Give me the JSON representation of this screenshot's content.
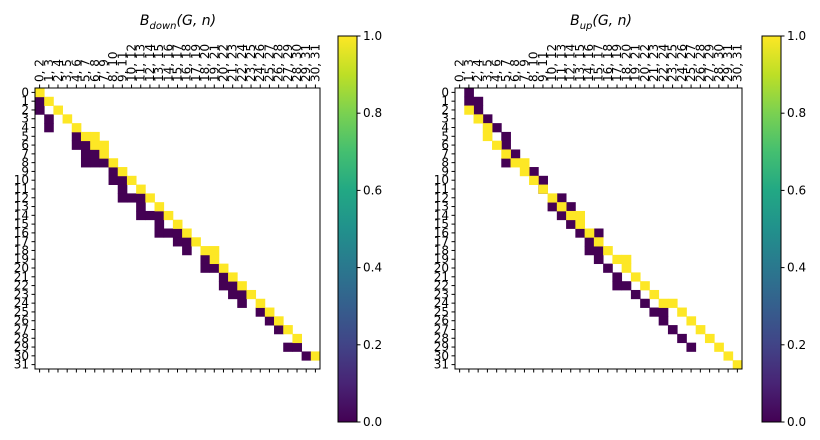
{
  "chart_data": [
    {
      "type": "heatmap",
      "title_main": "B",
      "title_sub": "down",
      "title_args": "(G, n)",
      "row_labels": [
        "0",
        "1",
        "2",
        "3",
        "4",
        "5",
        "6",
        "7",
        "8",
        "9",
        "10",
        "11",
        "12",
        "13",
        "14",
        "15",
        "16",
        "17",
        "18",
        "19",
        "20",
        "21",
        "22",
        "23",
        "24",
        "25",
        "26",
        "27",
        "28",
        "29",
        "30",
        "31"
      ],
      "col_labels": [
        "0, 2",
        "1, 3",
        "2, 4",
        "3, 5",
        "4, 6",
        "5, 7",
        "6, 8",
        "7, 9",
        "8, 10",
        "9, 11",
        "10, 12",
        "11, 13",
        "12, 14",
        "13, 15",
        "14, 16",
        "15, 17",
        "16, 18",
        "17, 19",
        "18, 20",
        "19, 21",
        "20, 22",
        "21, 23",
        "22, 24",
        "23, 25",
        "24, 26",
        "25, 27",
        "26, 28",
        "27, 29",
        "28, 30",
        "29, 31",
        "30, 31"
      ],
      "value_range": [
        0,
        1
      ],
      "colorbar_ticks": [
        "0.0",
        "0.2",
        "0.4",
        "0.6",
        "0.8",
        "1.0"
      ],
      "colormap": "viridis",
      "ones": [
        [
          0,
          0
        ],
        [
          1,
          1
        ],
        [
          2,
          2
        ],
        [
          3,
          3
        ],
        [
          4,
          4
        ],
        [
          5,
          5
        ],
        [
          5,
          6
        ],
        [
          6,
          6
        ],
        [
          6,
          7
        ],
        [
          7,
          7
        ],
        [
          8,
          8
        ],
        [
          9,
          9
        ],
        [
          10,
          10
        ],
        [
          11,
          11
        ],
        [
          12,
          12
        ],
        [
          13,
          13
        ],
        [
          14,
          14
        ],
        [
          15,
          15
        ],
        [
          16,
          16
        ],
        [
          17,
          17
        ],
        [
          18,
          18
        ],
        [
          18,
          19
        ],
        [
          19,
          19
        ],
        [
          20,
          20
        ],
        [
          21,
          21
        ],
        [
          22,
          22
        ],
        [
          23,
          23
        ],
        [
          24,
          24
        ],
        [
          25,
          25
        ],
        [
          26,
          26
        ],
        [
          27,
          27
        ],
        [
          28,
          28
        ],
        [
          30,
          30
        ]
      ],
      "zeros": [
        [
          1,
          0
        ],
        [
          2,
          0
        ],
        [
          3,
          1
        ],
        [
          4,
          1
        ],
        [
          5,
          4
        ],
        [
          6,
          4
        ],
        [
          6,
          5
        ],
        [
          7,
          5
        ],
        [
          7,
          6
        ],
        [
          8,
          5
        ],
        [
          8,
          6
        ],
        [
          8,
          7
        ],
        [
          9,
          8
        ],
        [
          10,
          8
        ],
        [
          10,
          9
        ],
        [
          11,
          9
        ],
        [
          12,
          9
        ],
        [
          12,
          10
        ],
        [
          12,
          11
        ],
        [
          13,
          11
        ],
        [
          14,
          11
        ],
        [
          14,
          12
        ],
        [
          14,
          13
        ],
        [
          15,
          13
        ],
        [
          16,
          13
        ],
        [
          16,
          14
        ],
        [
          16,
          15
        ],
        [
          17,
          15
        ],
        [
          17,
          16
        ],
        [
          18,
          16
        ],
        [
          19,
          18
        ],
        [
          20,
          18
        ],
        [
          20,
          19
        ],
        [
          21,
          20
        ],
        [
          22,
          20
        ],
        [
          22,
          21
        ],
        [
          23,
          21
        ],
        [
          23,
          22
        ],
        [
          24,
          22
        ],
        [
          25,
          24
        ],
        [
          26,
          25
        ],
        [
          27,
          26
        ],
        [
          29,
          27
        ],
        [
          29,
          28
        ],
        [
          30,
          29
        ]
      ]
    },
    {
      "type": "heatmap",
      "title_main": "B",
      "title_sub": "up",
      "title_args": "(G, n)",
      "row_labels": [
        "0",
        "1",
        "2",
        "3",
        "4",
        "5",
        "6",
        "7",
        "8",
        "9",
        "10",
        "11",
        "12",
        "13",
        "14",
        "15",
        "16",
        "17",
        "18",
        "19",
        "20",
        "21",
        "22",
        "23",
        "24",
        "25",
        "26",
        "27",
        "28",
        "29",
        "30",
        "31"
      ],
      "col_labels": [
        "0, 2",
        "1, 3",
        "2, 4",
        "3, 5",
        "4, 6",
        "5, 7",
        "6, 8",
        "7, 9",
        "8, 10",
        "9, 11",
        "10, 12",
        "11, 13",
        "12, 14",
        "13, 15",
        "14, 16",
        "15, 17",
        "16, 18",
        "17, 19",
        "18, 20",
        "19, 21",
        "20, 22",
        "21, 23",
        "22, 24",
        "23, 25",
        "24, 26",
        "25, 27",
        "26, 28",
        "27, 29",
        "28, 30",
        "29, 31",
        "30, 31"
      ],
      "value_range": [
        0,
        1
      ],
      "colorbar_ticks": [
        "0.0",
        "0.2",
        "0.4",
        "0.6",
        "0.8",
        "1.0"
      ],
      "colormap": "viridis",
      "ones": [
        [
          2,
          1
        ],
        [
          3,
          2
        ],
        [
          4,
          3
        ],
        [
          5,
          3
        ],
        [
          6,
          4
        ],
        [
          7,
          5
        ],
        [
          8,
          6
        ],
        [
          8,
          7
        ],
        [
          9,
          7
        ],
        [
          10,
          8
        ],
        [
          11,
          9
        ],
        [
          12,
          10
        ],
        [
          13,
          11
        ],
        [
          14,
          12
        ],
        [
          14,
          13
        ],
        [
          15,
          13
        ],
        [
          16,
          14
        ],
        [
          17,
          15
        ],
        [
          18,
          16
        ],
        [
          19,
          17
        ],
        [
          19,
          18
        ],
        [
          20,
          18
        ],
        [
          21,
          19
        ],
        [
          22,
          20
        ],
        [
          23,
          21
        ],
        [
          24,
          22
        ],
        [
          24,
          23
        ],
        [
          25,
          24
        ],
        [
          26,
          25
        ],
        [
          27,
          26
        ],
        [
          28,
          27
        ],
        [
          29,
          28
        ],
        [
          30,
          29
        ],
        [
          31,
          30
        ]
      ],
      "zeros": [
        [
          0,
          1
        ],
        [
          1,
          1
        ],
        [
          1,
          2
        ],
        [
          2,
          2
        ],
        [
          3,
          3
        ],
        [
          4,
          4
        ],
        [
          5,
          5
        ],
        [
          6,
          5
        ],
        [
          7,
          6
        ],
        [
          8,
          5
        ],
        [
          9,
          8
        ],
        [
          10,
          9
        ],
        [
          11,
          9
        ],
        [
          12,
          11
        ],
        [
          13,
          10
        ],
        [
          13,
          12
        ],
        [
          14,
          11
        ],
        [
          15,
          12
        ],
        [
          16,
          13
        ],
        [
          16,
          15
        ],
        [
          17,
          14
        ],
        [
          18,
          14
        ],
        [
          18,
          15
        ],
        [
          19,
          15
        ],
        [
          20,
          16
        ],
        [
          21,
          17
        ],
        [
          22,
          17
        ],
        [
          22,
          18
        ],
        [
          23,
          19
        ],
        [
          24,
          20
        ],
        [
          25,
          21
        ],
        [
          25,
          22
        ],
        [
          26,
          22
        ],
        [
          27,
          23
        ],
        [
          28,
          24
        ],
        [
          29,
          25
        ]
      ]
    }
  ]
}
